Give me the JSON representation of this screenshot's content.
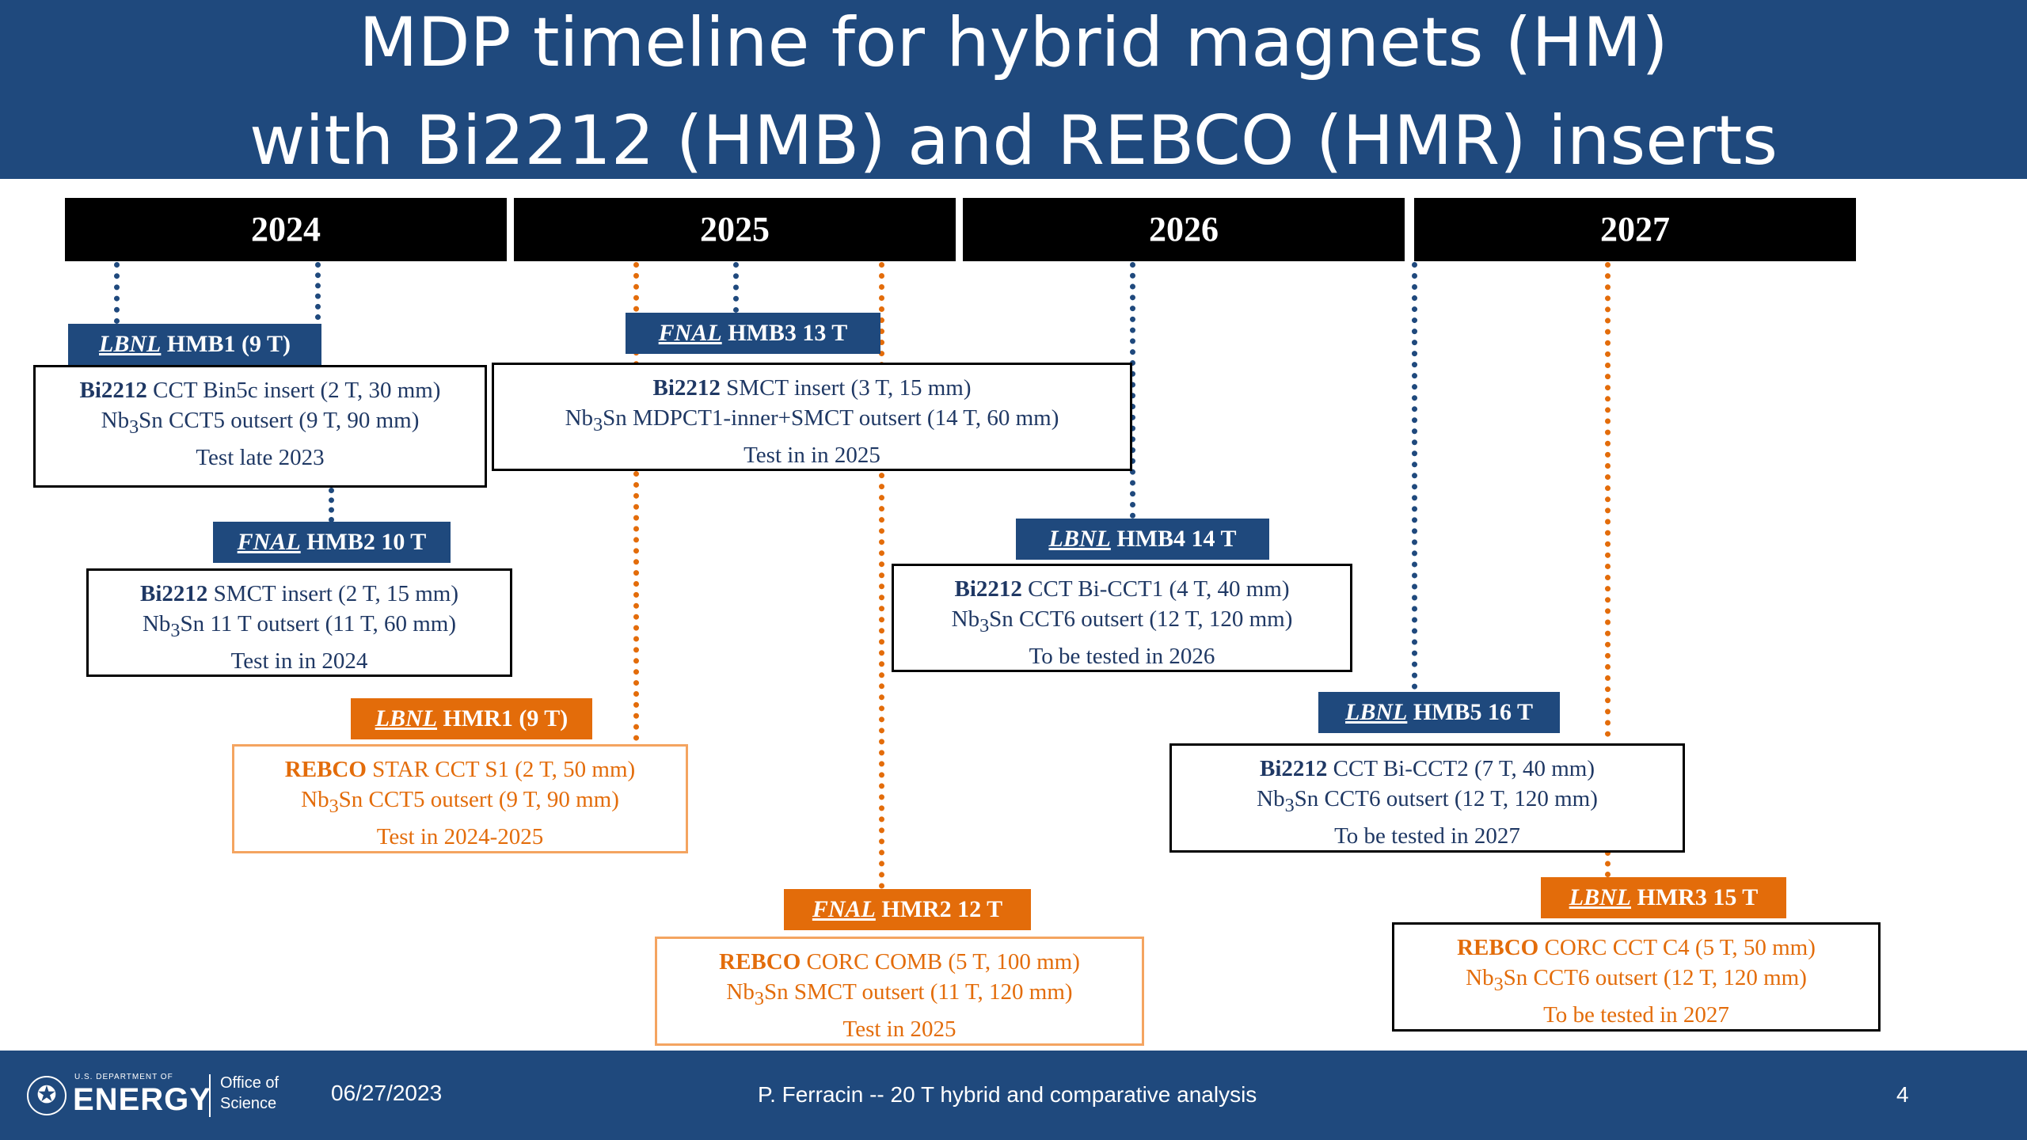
{
  "title": {
    "line1": "MDP timeline for hybrid magnets (HM)",
    "line2": "with Bi2212 (HMB) and REBCO (HMR) inserts"
  },
  "years": [
    "2024",
    "2025",
    "2026",
    "2027"
  ],
  "magnets": {
    "hmb1": {
      "lab": "LBNL",
      "name": "HMB1 (9 T)",
      "l1_bold": "Bi2212",
      "l1_rest": " CCT Bin5c insert (2 T, 30 mm)",
      "l2_pre": "Nb",
      "l2_sub": "3",
      "l2_rest": "Sn CCT5 outsert (9 T, 90 mm)",
      "l3": "Test late 2023"
    },
    "hmb2": {
      "lab": "FNAL",
      "name": "HMB2 10 T",
      "l1_bold": "Bi2212",
      "l1_rest": " SMCT insert (2 T, 15 mm)",
      "l2_pre": "Nb",
      "l2_sub": "3",
      "l2_rest": "Sn 11 T outsert (11 T, 60 mm)",
      "l3": "Test in in 2024"
    },
    "hmr1": {
      "lab": "LBNL",
      "name": "HMR1 (9 T)",
      "l1_bold": "REBCO",
      "l1_rest": " STAR CCT S1 (2 T, 50 mm)",
      "l2_pre": "Nb",
      "l2_sub": "3",
      "l2_rest": "Sn CCT5 outsert (9 T, 90 mm)",
      "l3": "Test in 2024-2025"
    },
    "hmb3": {
      "lab": "FNAL",
      "name": "HMB3 13 T",
      "l1_bold": "Bi2212",
      "l1_rest": " SMCT insert (3 T, 15 mm)",
      "l2_pre": "Nb",
      "l2_sub": "3",
      "l2_rest": "Sn MDPCT1-inner+SMCT outsert (14 T, 60 mm)",
      "l3": "Test in in 2025"
    },
    "hmr2": {
      "lab": "FNAL",
      "name": "HMR2 12 T",
      "l1_bold": "REBCO",
      "l1_rest": " CORC COMB (5 T, 100 mm)",
      "l2_pre": "Nb",
      "l2_sub": "3",
      "l2_rest": "Sn SMCT outsert (11 T, 120 mm)",
      "l3": "Test in 2025"
    },
    "hmb4": {
      "lab": "LBNL",
      "name": "HMB4 14 T",
      "l1_bold": "Bi2212",
      "l1_rest": " CCT Bi-CCT1 (4 T, 40 mm)",
      "l2_pre": "Nb",
      "l2_sub": "3",
      "l2_rest": "Sn CCT6 outsert (12 T, 120 mm)",
      "l3": "To be tested in 2026"
    },
    "hmb5": {
      "lab": "LBNL",
      "name": "HMB5 16 T",
      "l1_bold": "Bi2212",
      "l1_rest": " CCT Bi-CCT2 (7 T, 40 mm)",
      "l2_pre": "Nb",
      "l2_sub": "3",
      "l2_rest": "Sn CCT6 outsert (12 T, 120 mm)",
      "l3": "To be tested in 2027"
    },
    "hmr3": {
      "lab": "LBNL",
      "name": "HMR3 15 T",
      "l1_bold": "REBCO",
      "l1_rest": " CORC CCT C4 (5 T, 50 mm)",
      "l2_pre": "Nb",
      "l2_sub": "3",
      "l2_rest": "Sn CCT6 outsert (12 T, 120 mm)",
      "l3": "To be tested in 2027"
    }
  },
  "footer": {
    "logo_dept": "U.S. DEPARTMENT OF",
    "logo_energy": "ENERGY",
    "logo_office_1": "Office of",
    "logo_office_2": "Science",
    "date": "06/27/2023",
    "center_text": "P. Ferracin -- 20 T hybrid and comparative analysis",
    "page": "4"
  },
  "colors": {
    "header_bg": "#1f497d",
    "bi2212_blue": "#1f497d",
    "rebco_orange": "#e36c0a",
    "year_bar": "#000000"
  }
}
